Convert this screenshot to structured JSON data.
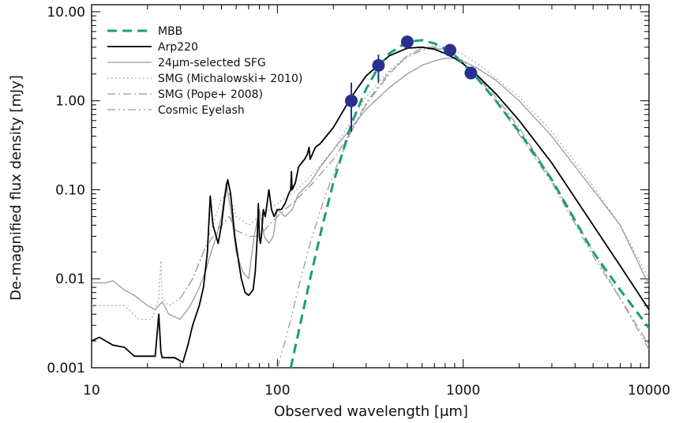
{
  "chart_data": {
    "type": "line",
    "title": "",
    "xlabel": "Observed wavelength [μm]",
    "ylabel": "De-magnified flux density [mJy]",
    "x_scale": "log",
    "y_scale": "log",
    "xlim": [
      10,
      10000
    ],
    "ylim": [
      0.001,
      12
    ],
    "x_ticks": [
      {
        "value": 10,
        "label": "10"
      },
      {
        "value": 100,
        "label": "100"
      },
      {
        "value": 1000,
        "label": "1000"
      },
      {
        "value": 10000,
        "label": "10000"
      }
    ],
    "y_ticks": [
      {
        "value": 0.001,
        "label": "0.001"
      },
      {
        "value": 0.01,
        "label": "0.01"
      },
      {
        "value": 0.1,
        "label": "0.10"
      },
      {
        "value": 1,
        "label": "1.00"
      },
      {
        "value": 10,
        "label": "10.00"
      }
    ],
    "grid": false,
    "legend_position": "top-left",
    "series": [
      {
        "name": "MBB",
        "color": "#1a9e77",
        "dash": "dashed",
        "width": 3,
        "x": [
          118,
          130,
          150,
          175,
          200,
          250,
          300,
          350,
          400,
          500,
          600,
          700,
          800,
          900,
          1000,
          1200,
          1500,
          2000,
          3000,
          5000,
          7000,
          10000
        ],
        "y": [
          0.001,
          0.0025,
          0.01,
          0.04,
          0.12,
          0.55,
          1.35,
          2.4,
          3.4,
          4.6,
          4.8,
          4.4,
          3.8,
          3.2,
          2.6,
          1.75,
          1.0,
          0.45,
          0.13,
          0.02,
          0.0075,
          0.0028
        ]
      },
      {
        "name": "Arp220",
        "color": "#000000",
        "dash": "solid",
        "width": 1.8,
        "x": [
          10,
          11,
          13,
          15,
          17,
          19,
          22,
          23,
          23.6,
          24,
          26,
          28,
          31,
          33,
          35,
          38,
          40,
          42,
          43.5,
          45,
          48,
          50,
          52,
          54,
          56,
          59,
          62,
          64,
          67,
          70,
          74,
          76,
          78,
          79,
          80,
          81,
          82,
          84,
          86,
          88,
          90,
          93,
          96,
          100,
          105,
          110,
          115,
          118,
          119,
          120,
          125,
          130,
          135,
          140,
          145,
          148,
          150,
          160,
          170,
          200,
          250,
          300,
          400,
          500,
          600,
          700,
          800,
          900,
          1000,
          1200,
          1500,
          2000,
          3000,
          5000,
          7000,
          10000
        ],
        "y": [
          0.002,
          0.0022,
          0.0018,
          0.0017,
          0.00135,
          0.00135,
          0.00135,
          0.004,
          0.0015,
          0.0013,
          0.0013,
          0.0013,
          0.00115,
          0.0018,
          0.003,
          0.005,
          0.008,
          0.02,
          0.085,
          0.04,
          0.025,
          0.04,
          0.08,
          0.13,
          0.09,
          0.03,
          0.015,
          0.01,
          0.007,
          0.0065,
          0.0075,
          0.012,
          0.03,
          0.07,
          0.03,
          0.025,
          0.03,
          0.06,
          0.05,
          0.07,
          0.1,
          0.06,
          0.05,
          0.06,
          0.06,
          0.07,
          0.09,
          0.1,
          0.16,
          0.1,
          0.12,
          0.18,
          0.2,
          0.22,
          0.25,
          0.3,
          0.22,
          0.3,
          0.33,
          0.5,
          1.1,
          1.9,
          3.2,
          3.9,
          4.0,
          3.8,
          3.4,
          3.0,
          2.6,
          1.9,
          1.2,
          0.6,
          0.2,
          0.04,
          0.014,
          0.0045
        ]
      },
      {
        "name": "24μm-selected SFG",
        "color": "#999999",
        "dash": "solid",
        "width": 1.3,
        "x": [
          10,
          12,
          13,
          15,
          17,
          20,
          22,
          24,
          26,
          30,
          34,
          38,
          41,
          44,
          47,
          50,
          53,
          56,
          60,
          65,
          70,
          75,
          80,
          85,
          90,
          95,
          100,
          110,
          120,
          130,
          150,
          170,
          200,
          250,
          300,
          400,
          500,
          600,
          700,
          800,
          900,
          1000,
          1200,
          1500,
          2000,
          3000,
          5000,
          7000,
          10000
        ],
        "y": [
          0.009,
          0.009,
          0.0095,
          0.0075,
          0.0065,
          0.005,
          0.0045,
          0.0055,
          0.004,
          0.0035,
          0.005,
          0.008,
          0.012,
          0.02,
          0.03,
          0.05,
          0.12,
          0.06,
          0.02,
          0.012,
          0.01,
          0.03,
          0.06,
          0.03,
          0.025,
          0.03,
          0.06,
          0.05,
          0.06,
          0.09,
          0.12,
          0.18,
          0.28,
          0.5,
          0.8,
          1.4,
          2.0,
          2.5,
          2.8,
          3.0,
          3.0,
          2.8,
          2.3,
          1.7,
          1.0,
          0.4,
          0.1,
          0.04,
          0.0085
        ]
      },
      {
        "name": "SMG (Michalowski+ 2010)",
        "color": "#999999",
        "dash": "dotted",
        "width": 1.3,
        "x": [
          10,
          12,
          15,
          18,
          21,
          23,
          23.6,
          24,
          26,
          30,
          35,
          40,
          45,
          50,
          55,
          60,
          70,
          80,
          90,
          100,
          120,
          150,
          200,
          250,
          300,
          400,
          500,
          600,
          700,
          800,
          900,
          1000,
          1200,
          1500,
          2000,
          3000,
          5000,
          7000,
          10000
        ],
        "y": [
          0.005,
          0.005,
          0.005,
          0.0035,
          0.0035,
          0.006,
          0.016,
          0.006,
          0.005,
          0.006,
          0.01,
          0.02,
          0.04,
          0.08,
          0.09,
          0.05,
          0.04,
          0.05,
          0.06,
          0.07,
          0.09,
          0.14,
          0.28,
          0.6,
          1.1,
          2.2,
          3.2,
          3.9,
          4.2,
          4.0,
          3.7,
          3.3,
          2.6,
          1.8,
          1.1,
          0.45,
          0.11,
          0.04,
          0.01
        ]
      },
      {
        "name": "SMG (Pope+ 2008)",
        "color": "#999999",
        "dash": "dashdot",
        "width": 1.3,
        "x": [
          30,
          35,
          40,
          45,
          50,
          55,
          60,
          70,
          80,
          90,
          100,
          110,
          120,
          150,
          200,
          250,
          300,
          400,
          500,
          600,
          700,
          800,
          900,
          1000,
          1200,
          1500,
          2000,
          3000,
          5000,
          7000,
          10000
        ],
        "y": [
          0.006,
          0.01,
          0.02,
          0.03,
          0.04,
          0.05,
          0.035,
          0.03,
          0.03,
          0.04,
          0.05,
          0.06,
          0.07,
          0.11,
          0.22,
          0.45,
          0.9,
          2.0,
          3.2,
          3.9,
          4.0,
          3.7,
          3.2,
          2.7,
          1.9,
          1.1,
          0.5,
          0.13,
          0.02,
          0.006,
          0.0018
        ]
      },
      {
        "name": "Cosmic Eyelash",
        "color": "#999999",
        "dash": "dashdotdot",
        "width": 1.3,
        "x": [
          100,
          110,
          120,
          130,
          150,
          175,
          200,
          250,
          300,
          400,
          500,
          600,
          700,
          800,
          900,
          1000,
          1200,
          1500,
          2000,
          3000,
          5000,
          7000,
          10000
        ],
        "y": [
          0.001,
          0.002,
          0.004,
          0.008,
          0.025,
          0.07,
          0.15,
          0.45,
          0.95,
          2.1,
          3.1,
          3.7,
          3.9,
          3.7,
          3.3,
          2.8,
          1.9,
          1.0,
          0.42,
          0.12,
          0.018,
          0.006,
          0.0016
        ]
      }
    ],
    "points": {
      "name": "",
      "color": "#28308f",
      "x": [
        250,
        350,
        500,
        850,
        1100
      ],
      "y": [
        1.0,
        2.5,
        4.6,
        3.7,
        2.05
      ],
      "err_low": [
        0.45,
        1.6,
        4.6,
        3.7,
        2.05
      ],
      "err_high": [
        1.6,
        3.3,
        4.6,
        3.7,
        2.05
      ]
    }
  }
}
